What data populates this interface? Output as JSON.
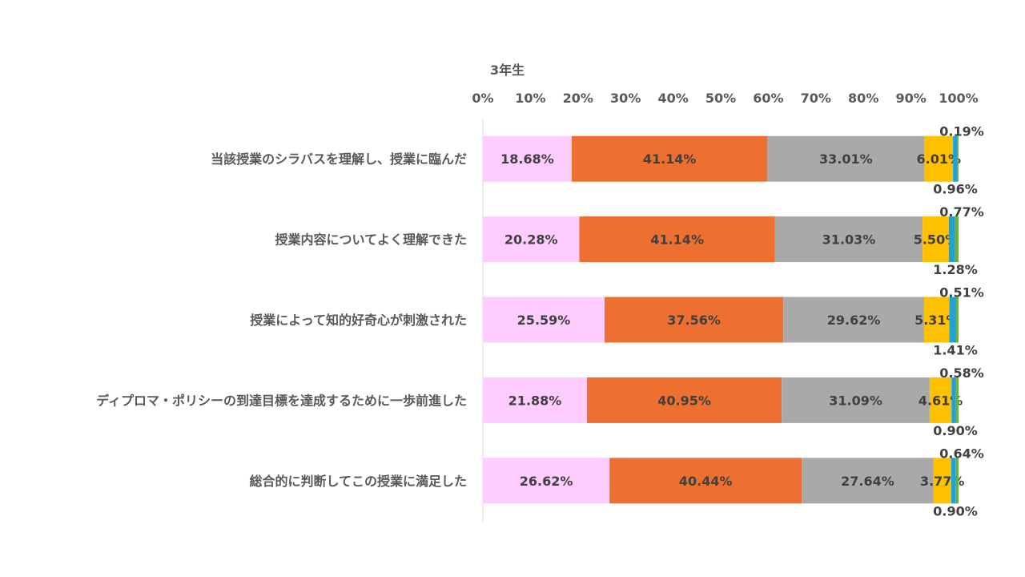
{
  "chart_data": {
    "type": "bar",
    "orientation": "horizontal",
    "stacked": true,
    "title": "3年生",
    "categories": [
      "当該授業のシラバスを理解し、授業に臨んだ",
      "授業内容についてよく理解できた",
      "授業によって知的好奇心が刺激された",
      "ディプロマ・ポリシーの到達目標を達成するために一歩前進した",
      "総合的に判断してこの授業に満足した"
    ],
    "x_ticks": [
      "0%",
      "10%",
      "20%",
      "30%",
      "40%",
      "50%",
      "60%",
      "70%",
      "80%",
      "90%",
      "100%"
    ],
    "xlim": [
      0,
      100
    ],
    "grid": false,
    "legend": false,
    "series": [
      {
        "color": "#FFCCFF",
        "values": [
          18.68,
          20.28,
          25.59,
          21.88,
          26.62
        ],
        "labels": [
          "18.68%",
          "20.28%",
          "25.59%",
          "21.88%",
          "26.62%"
        ]
      },
      {
        "color": "#ED7031",
        "values": [
          41.14,
          41.14,
          37.56,
          40.95,
          40.44
        ],
        "labels": [
          "41.14%",
          "41.14%",
          "37.56%",
          "40.95%",
          "40.44%"
        ]
      },
      {
        "color": "#A9A9A9",
        "values": [
          33.01,
          31.03,
          29.62,
          31.09,
          27.64
        ],
        "labels": [
          "33.01%",
          "31.03%",
          "29.62%",
          "31.09%",
          "27.64%"
        ]
      },
      {
        "color": "#FFC000",
        "values": [
          6.01,
          5.5,
          5.31,
          4.61,
          3.77
        ],
        "labels": [
          "6.01%",
          "5.50%",
          "5.31%",
          "4.61%",
          "3.77%"
        ]
      },
      {
        "color": "#1FA2D8",
        "values": [
          0.96,
          1.28,
          1.41,
          0.9,
          0.9
        ],
        "labels": [
          "0.96%",
          "1.28%",
          "1.41%",
          "0.90%",
          "0.90%"
        ]
      },
      {
        "color": "#70AD47",
        "values": [
          0.19,
          0.77,
          0.51,
          0.58,
          0.64
        ],
        "labels": [
          "0.19%",
          "0.77%",
          "0.51%",
          "0.58%",
          "0.64%"
        ]
      }
    ]
  }
}
